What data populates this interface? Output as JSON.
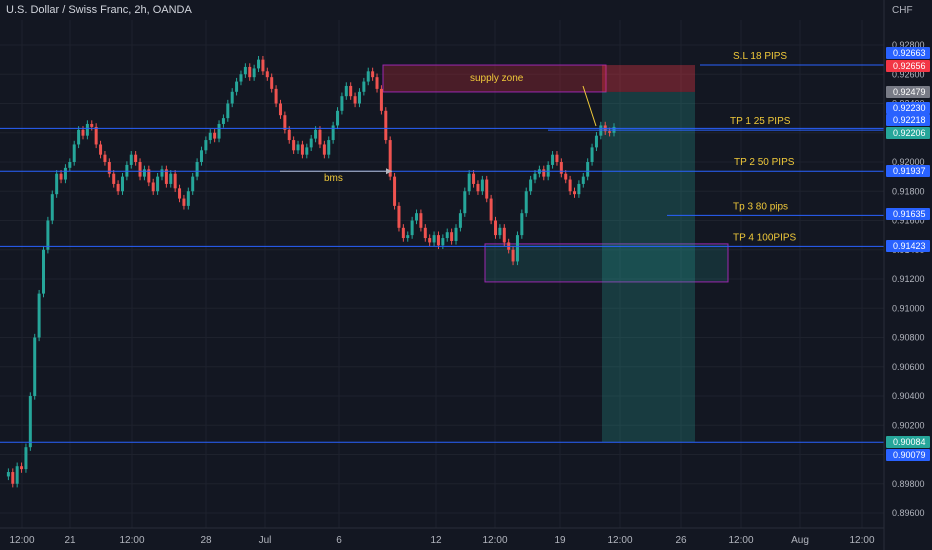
{
  "header": {
    "title": "U.S. Dollar / Swiss Franc, 2h, OANDA",
    "currency": "CHF"
  },
  "colors": {
    "background": "#131722",
    "grid": "#1e222d",
    "up": "#26a69a",
    "down": "#ef5350",
    "level_line": "#2962ff",
    "annotation_text": "#f0c93a",
    "zone_border": "#9c27b0",
    "supply_fill": "rgba(178,40,51,0.35)",
    "demand_fill": "rgba(38,166,154,0.18)",
    "target_fill": "rgba(38,166,154,0.25)",
    "stop_fill": "rgba(242,54,69,0.35)"
  },
  "chart_data": {
    "type": "candlestick",
    "symbol": "USDCHF",
    "timeframe": "2h",
    "broker": "OANDA",
    "x_tick_labels": [
      "12:00",
      "21",
      "12:00",
      "28",
      "Jul",
      "6",
      "12",
      "12:00",
      "19",
      "12:00",
      "26",
      "12:00",
      "Aug",
      "12:00"
    ],
    "y_tick_labels": [
      "0.92800",
      "0.92600",
      "0.92400",
      "0.92200",
      "0.92000",
      "0.91800",
      "0.91600",
      "0.91400",
      "0.91200",
      "0.91000",
      "0.90800",
      "0.90600",
      "0.90400",
      "0.90200",
      "0.90000",
      "0.89800",
      "0.89600"
    ],
    "ylim": [
      0.8955,
      0.9305
    ],
    "price_line_series": [
      0.8985,
      0.8988,
      0.898,
      0.8992,
      0.899,
      0.9005,
      0.904,
      0.908,
      0.911,
      0.914,
      0.916,
      0.9178,
      0.9192,
      0.9188,
      0.9196,
      0.92,
      0.9212,
      0.9222,
      0.9218,
      0.9226,
      0.9224,
      0.9212,
      0.9205,
      0.92,
      0.9192,
      0.9185,
      0.918,
      0.919,
      0.9198,
      0.9205,
      0.92,
      0.919,
      0.9195,
      0.9186,
      0.918,
      0.919,
      0.9195,
      0.9185,
      0.9192,
      0.9182,
      0.9175,
      0.917,
      0.918,
      0.919,
      0.92,
      0.9208,
      0.9215,
      0.922,
      0.9216,
      0.9226,
      0.923,
      0.924,
      0.9248,
      0.9255,
      0.926,
      0.9265,
      0.9258,
      0.9264,
      0.927,
      0.9262,
      0.9258,
      0.925,
      0.924,
      0.9232,
      0.9222,
      0.9215,
      0.9208,
      0.9212,
      0.9205,
      0.921,
      0.9216,
      0.9222,
      0.9212,
      0.9205,
      0.9215,
      0.9225,
      0.9235,
      0.9245,
      0.9252,
      0.9245,
      0.924,
      0.9248,
      0.9255,
      0.9262,
      0.9258,
      0.925,
      0.9235,
      0.9215,
      0.919,
      0.917,
      0.9155,
      0.9148,
      0.915,
      0.916,
      0.9165,
      0.9155,
      0.9148,
      0.9145,
      0.915,
      0.9143,
      0.9148,
      0.9152,
      0.9146,
      0.9155,
      0.9165,
      0.918,
      0.9192,
      0.9185,
      0.918,
      0.9188,
      0.9175,
      0.916,
      0.915,
      0.9155,
      0.9145,
      0.914,
      0.9132,
      0.915,
      0.9165,
      0.918,
      0.9188,
      0.9192,
      0.9195,
      0.919,
      0.9198,
      0.9205,
      0.92,
      0.9192,
      0.9188,
      0.918,
      0.9178,
      0.9185,
      0.919,
      0.92,
      0.921,
      0.9218,
      0.9225,
      0.9221,
      0.922,
      0.9224
    ],
    "horizontal_levels": [
      {
        "label": "S.L 18 PIPS",
        "price": 0.92663
      },
      {
        "label": "TP 1 25 PIPS",
        "price": 0.92218
      },
      {
        "label": "TP 2 50 PIPS",
        "price": 0.91937
      },
      {
        "label": "Tp 3 80 pips",
        "price": 0.91635
      },
      {
        "label": "TP 4 100PIPS",
        "price": 0.91423
      },
      {
        "label": "",
        "price": 0.90084
      }
    ],
    "price_axis_badges": [
      {
        "text": "0.92663",
        "bg": "#2962ff"
      },
      {
        "text": "0.92656",
        "bg": "#f23645"
      },
      {
        "text": "0.92479",
        "bg": "#787b86"
      },
      {
        "text": "0.92230",
        "bg": "#2962ff"
      },
      {
        "text": "0.92218",
        "bg": "#2962ff"
      },
      {
        "text": "0.92206",
        "bg": "#26a69a"
      },
      {
        "text": "0.91937",
        "bg": "#2962ff"
      },
      {
        "text": "0.91635",
        "bg": "#2962ff"
      },
      {
        "text": "0.91423",
        "bg": "#2962ff"
      },
      {
        "text": "0.90084",
        "bg": "#26a69a"
      },
      {
        "text": "0.90079",
        "bg": "#2962ff"
      }
    ],
    "zones": [
      {
        "label": "supply zone",
        "kind": "supply",
        "top": 0.92663,
        "bottom": 0.92479
      },
      {
        "label": "",
        "kind": "demand",
        "top": 0.9144,
        "bottom": 0.9118
      }
    ],
    "position_tool": {
      "entry": 0.92479,
      "stop": 0.92663,
      "target": 0.90084
    },
    "annotations": [
      {
        "text": "bms",
        "price": 0.91937
      },
      {
        "text": "supply zone",
        "price": 0.9258
      }
    ]
  }
}
